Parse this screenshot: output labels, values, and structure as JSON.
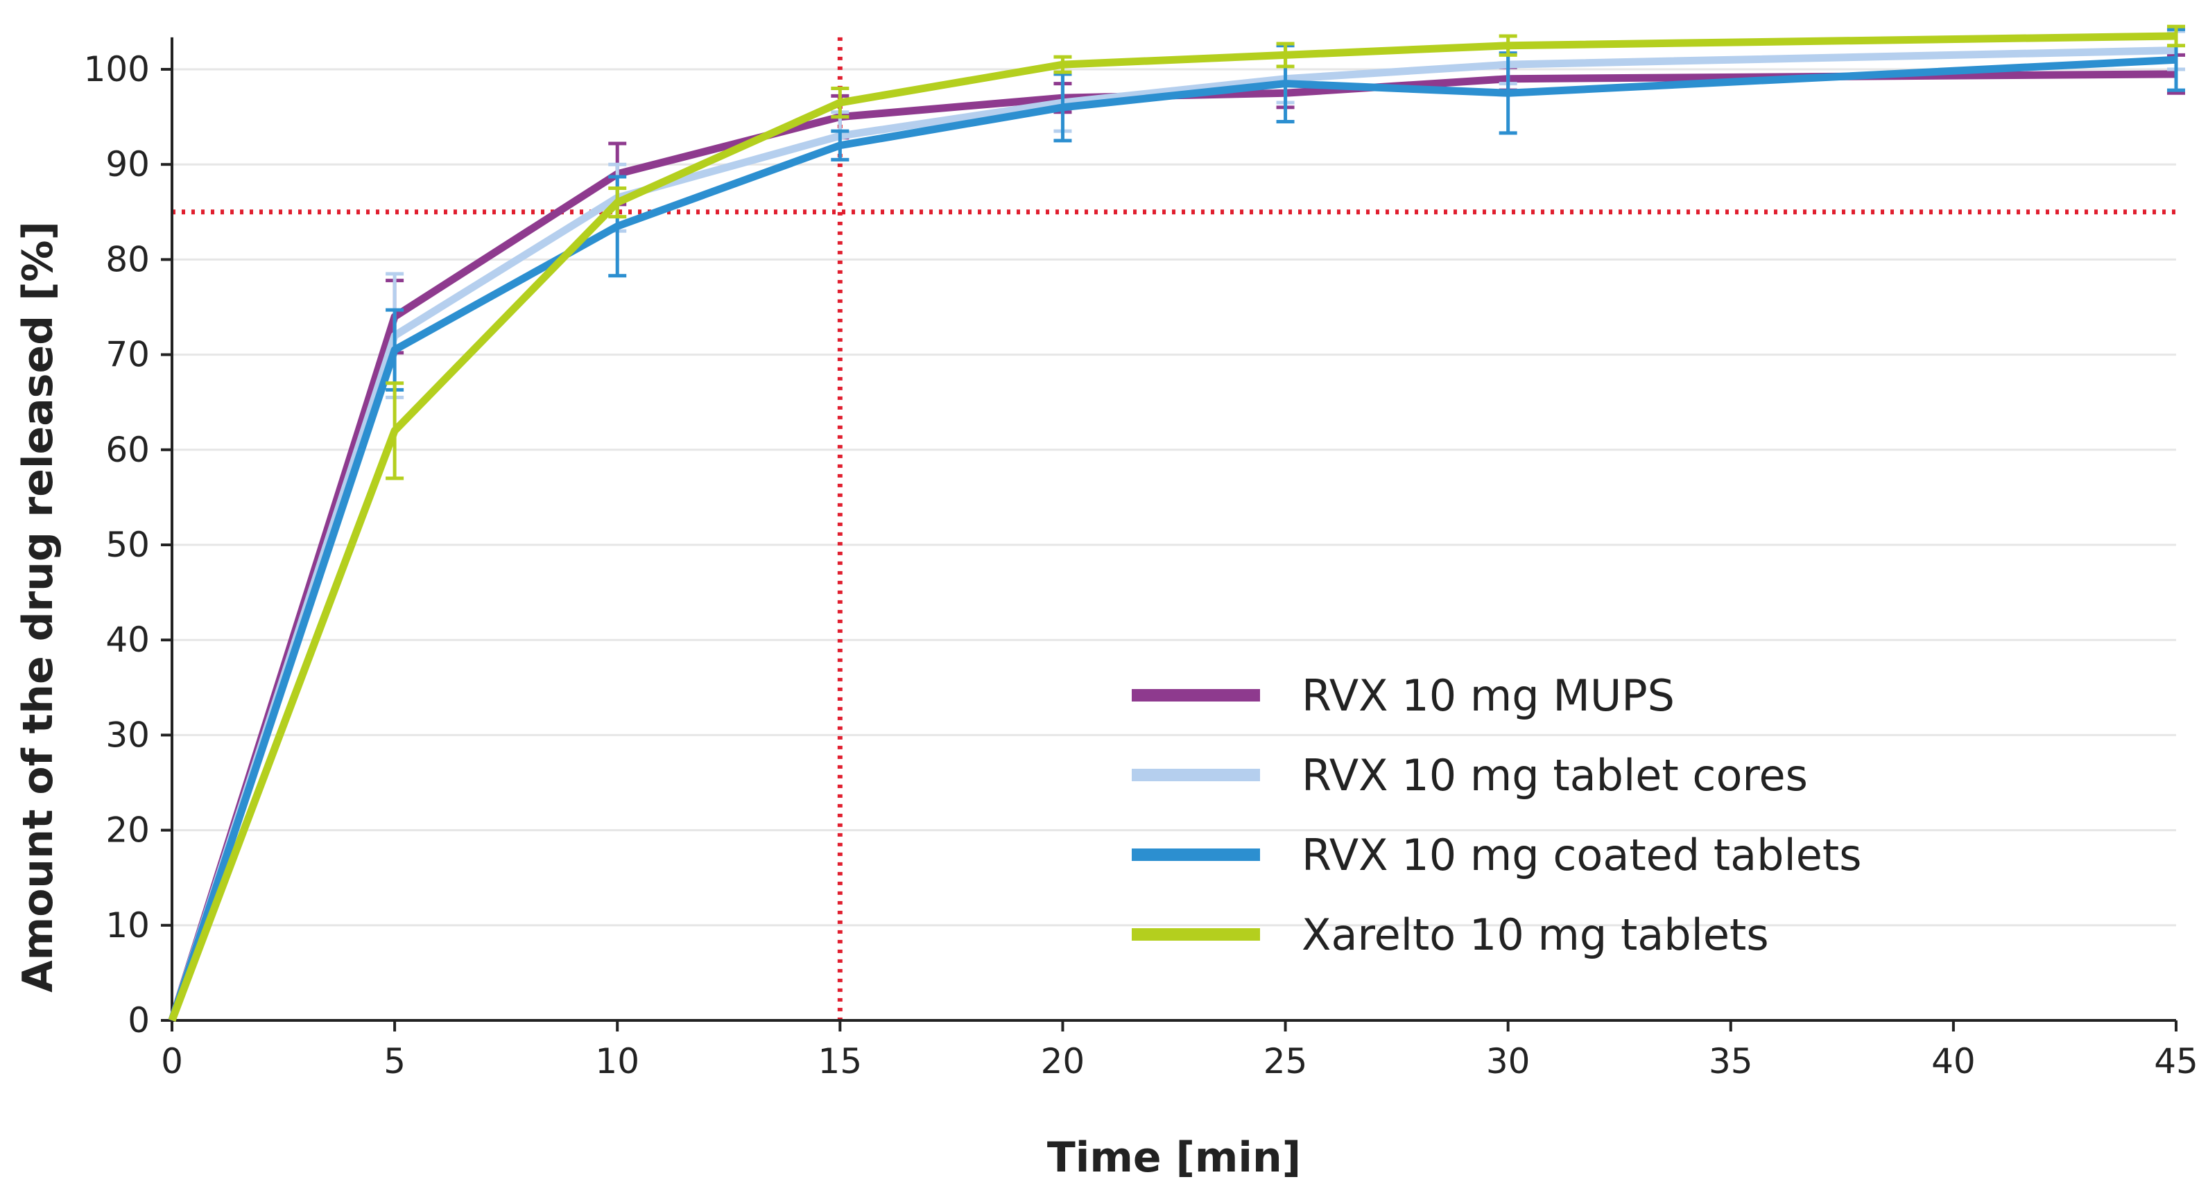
{
  "chart_data": {
    "type": "line",
    "xlabel": "Time [min]",
    "ylabel": "Amount of the drug released [%]",
    "xlim": [
      0,
      45
    ],
    "ylim": [
      0,
      103
    ],
    "xticks": [
      0,
      5,
      10,
      15,
      20,
      25,
      30,
      35,
      40,
      45
    ],
    "yticks": [
      0,
      10,
      20,
      30,
      40,
      50,
      60,
      70,
      80,
      90,
      100
    ],
    "grid": "horizontal",
    "legend_position": "bottom-right",
    "reference_lines": [
      {
        "axis": "y",
        "value": 85,
        "color": "#e01e2e",
        "style": "dotted"
      },
      {
        "axis": "x",
        "value": 15,
        "color": "#e01e2e",
        "style": "dotted"
      }
    ],
    "series": [
      {
        "name": "RVX 10 mg MUPS",
        "color": "#8e3a8e",
        "x": [
          0,
          5,
          10,
          15,
          20,
          25,
          30,
          45
        ],
        "values": [
          0,
          74,
          89,
          95,
          97,
          97.5,
          99,
          99.5
        ],
        "errors": [
          0,
          3.8,
          3.2,
          2.2,
          1.5,
          1.5,
          1.2,
          2.0
        ]
      },
      {
        "name": "RVX 10 mg tablet cores",
        "color": "#b5cfee",
        "x": [
          0,
          5,
          10,
          15,
          20,
          25,
          30,
          45
        ],
        "values": [
          0,
          72,
          86.5,
          93,
          96.5,
          99,
          100.5,
          102
        ],
        "errors": [
          0,
          6.5,
          3.5,
          2.5,
          3.0,
          2.5,
          2.0,
          2.0
        ]
      },
      {
        "name": "RVX 10 mg coated tablets",
        "color": "#2c8fd0",
        "x": [
          0,
          5,
          10,
          15,
          20,
          25,
          30,
          45
        ],
        "values": [
          0,
          70.5,
          83.5,
          92,
          96,
          98.5,
          97.5,
          101
        ],
        "errors": [
          0,
          4.2,
          5.2,
          1.5,
          3.5,
          4.0,
          4.2,
          3.2
        ]
      },
      {
        "name": "Xarelto 10 mg tablets",
        "color": "#b4cf1e",
        "x": [
          0,
          5,
          10,
          15,
          20,
          25,
          30,
          45
        ],
        "values": [
          0,
          62,
          86,
          96.5,
          100.5,
          101.5,
          102.5,
          103.5
        ],
        "errors": [
          0,
          5.0,
          1.5,
          1.5,
          0.8,
          1.2,
          1.0,
          1.0
        ]
      }
    ]
  }
}
